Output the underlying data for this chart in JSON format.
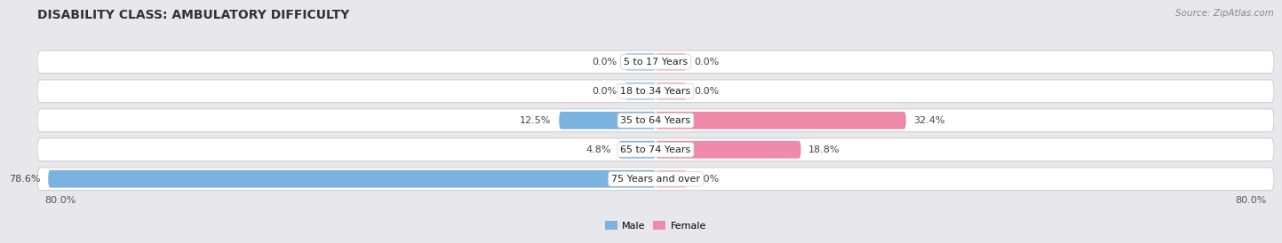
{
  "title": "DISABILITY CLASS: AMBULATORY DIFFICULTY",
  "source": "Source: ZipAtlas.com",
  "categories": [
    "5 to 17 Years",
    "18 to 34 Years",
    "35 to 64 Years",
    "65 to 74 Years",
    "75 Years and over"
  ],
  "male_values": [
    0.0,
    0.0,
    12.5,
    4.8,
    78.6
  ],
  "female_values": [
    0.0,
    0.0,
    32.4,
    18.8,
    0.0
  ],
  "male_color": "#7ab3df",
  "female_color": "#f08aaa",
  "male_stub_color": "#aacce8",
  "female_stub_color": "#f5b8cc",
  "bar_bg_color": "#ffffff",
  "bar_border_color": "#d0d0d0",
  "row_bg_color": "#e8e8ec",
  "xlim_left": -80.0,
  "xlim_right": 80.0,
  "title_fontsize": 10,
  "label_fontsize": 8,
  "value_fontsize": 8,
  "tick_fontsize": 8,
  "background_color": "#e8e8ec",
  "stub_size": 4.0
}
